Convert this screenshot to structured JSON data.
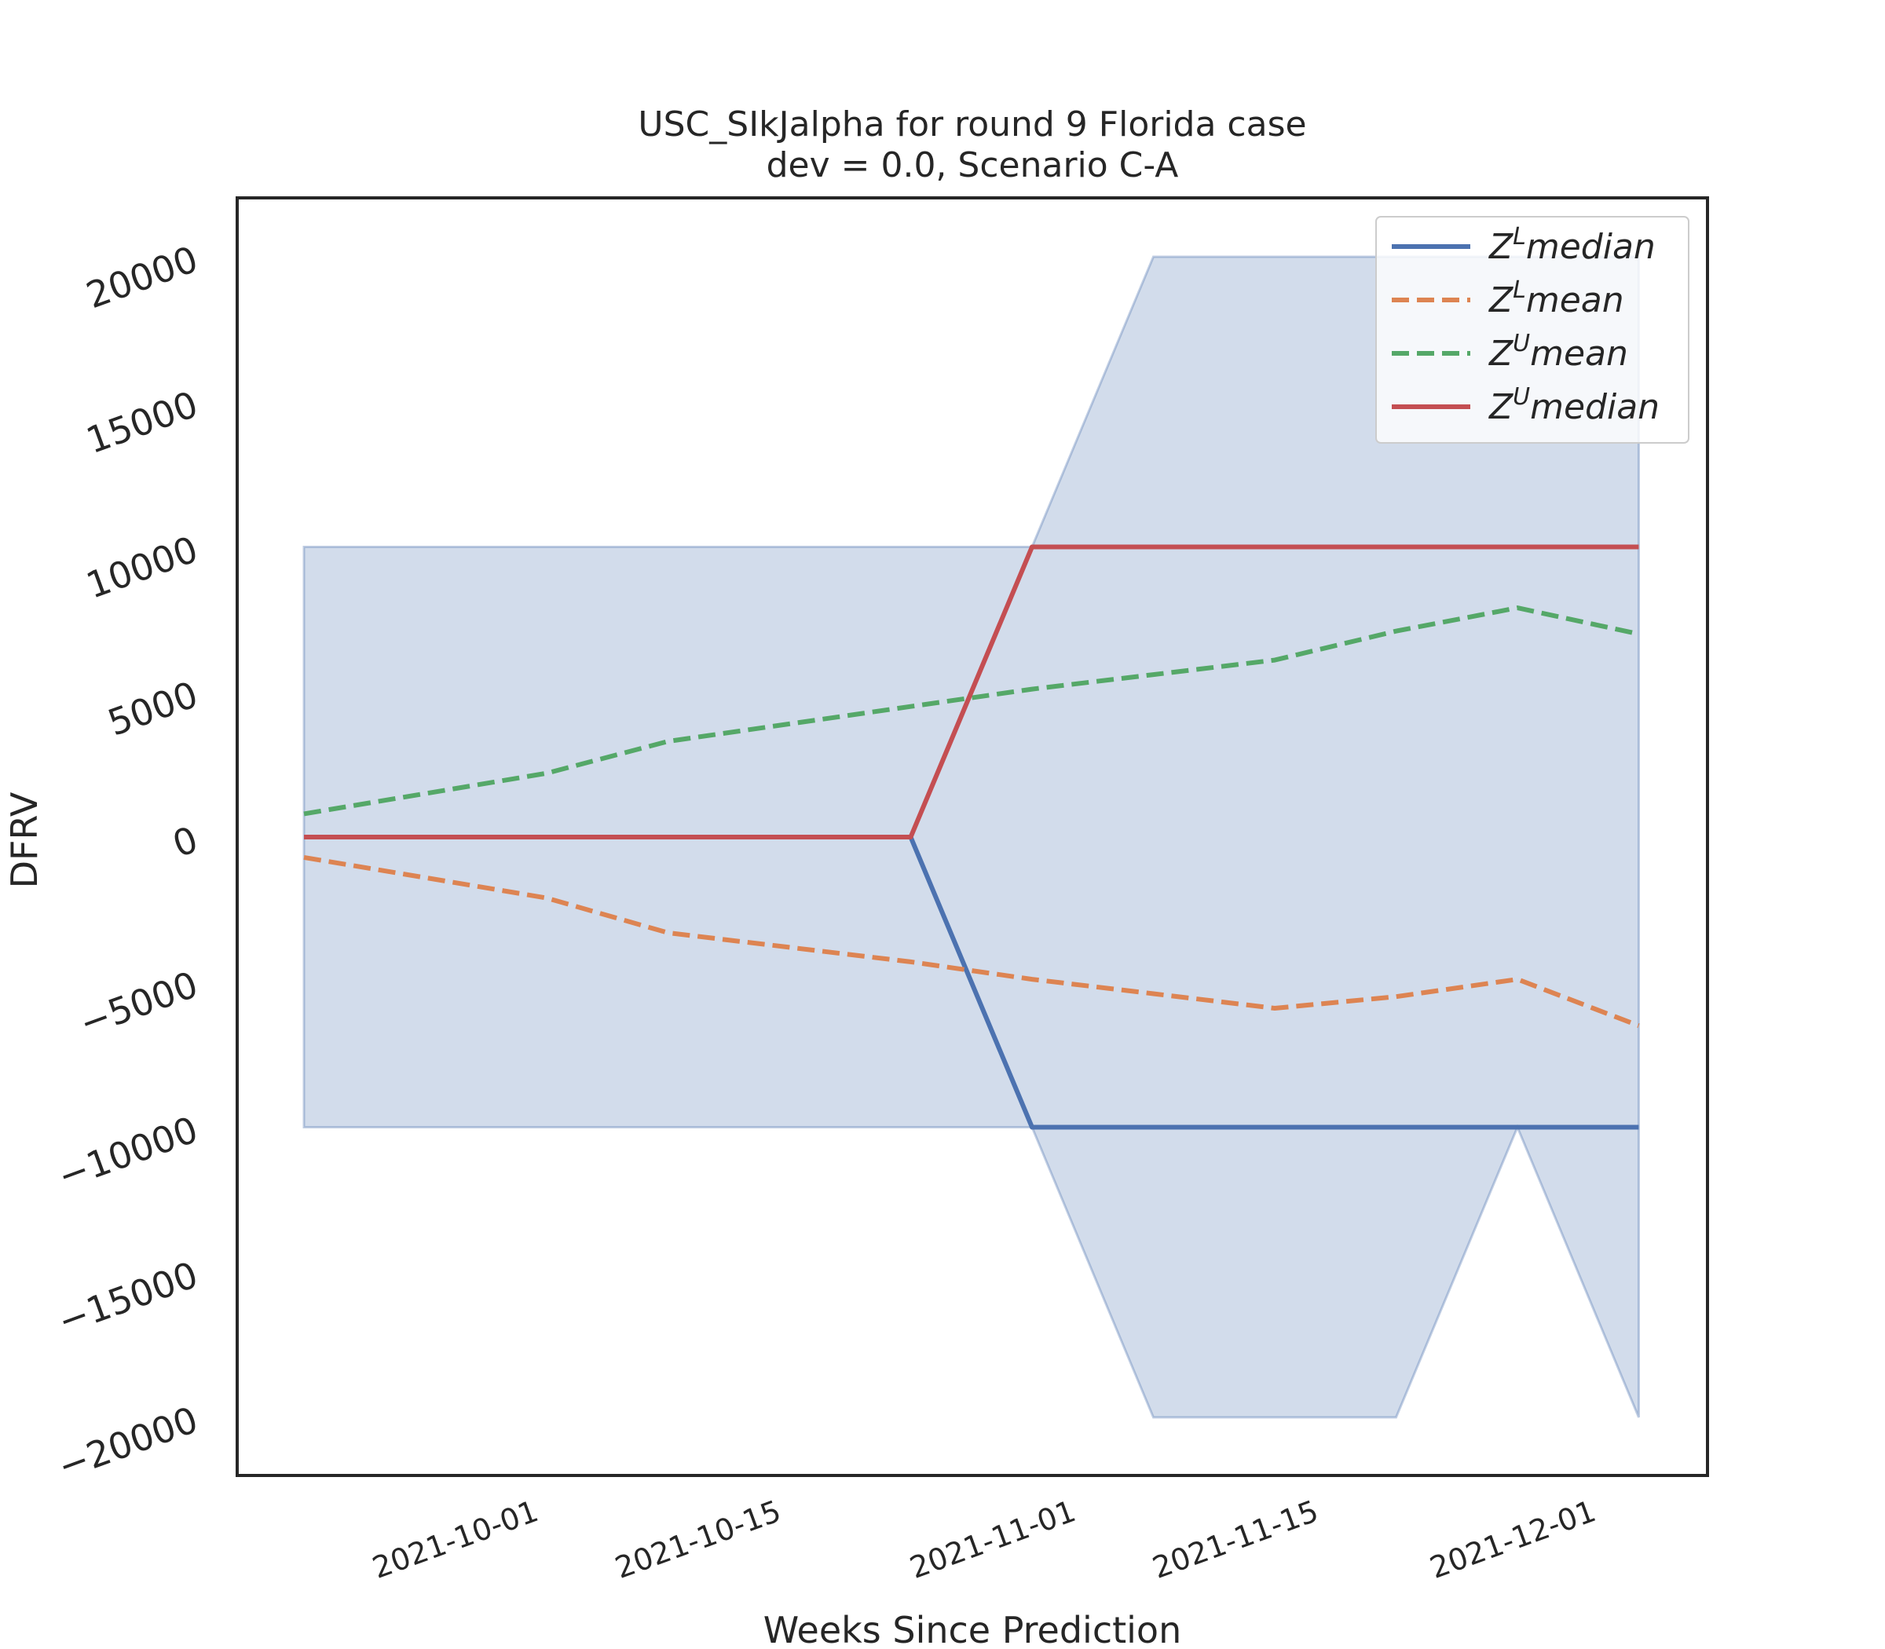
{
  "chart_data": {
    "type": "line",
    "title": "USC_SIkJalpha for round 9 Florida case",
    "subtitle": "dev = 0.0, Scenario C-A",
    "xlabel": "Weeks Since Prediction",
    "ylabel": "DFRV",
    "x": [
      "2021-09-18",
      "2021-09-25",
      "2021-10-02",
      "2021-10-09",
      "2021-10-16",
      "2021-10-23",
      "2021-10-30",
      "2021-11-06",
      "2021-11-13",
      "2021-11-20",
      "2021-11-27",
      "2021-12-04"
    ],
    "x_ticks": [
      "2021-10-01",
      "2021-10-15",
      "2021-11-01",
      "2021-11-15",
      "2021-12-01"
    ],
    "y_ticks": [
      20000,
      15000,
      10000,
      5000,
      0,
      -5000,
      -10000,
      -15000,
      -20000
    ],
    "y_tick_labels": [
      "20000",
      "15000",
      "10000",
      "5000",
      "0",
      "−5000",
      "−10000",
      "−15000",
      "−20000"
    ],
    "ylim": [
      -21000,
      22000
    ],
    "grid": false,
    "legend_position": "top-right",
    "band": {
      "upper": [
        10000,
        10000,
        10000,
        10000,
        10000,
        10000,
        10000,
        20000,
        20000,
        20000,
        20000,
        20000
      ],
      "lower": [
        -10000,
        -10000,
        -10000,
        -10000,
        -10000,
        -10000,
        -10000,
        -20000,
        -20000,
        -20000,
        -10000,
        -20000
      ],
      "color": "#4c72b0"
    },
    "series": [
      {
        "name": "Z",
        "sup": "L",
        "suffix": "median",
        "style": "solid",
        "color": "#4c72b0",
        "values": [
          0,
          0,
          0,
          0,
          0,
          0,
          -10000,
          -10000,
          -10000,
          -10000,
          -10000,
          -10000
        ]
      },
      {
        "name": "Z",
        "sup": "L",
        "suffix": "mean",
        "style": "dashed",
        "color": "#dd8452",
        "values": [
          -700,
          -1400,
          -2100,
          -3300,
          -3800,
          -4300,
          -4900,
          -5400,
          -5900,
          -5500,
          -4900,
          -6500
        ]
      },
      {
        "name": "Z",
        "sup": "U",
        "suffix": "mean",
        "style": "dashed",
        "color": "#55a868",
        "values": [
          800,
          1500,
          2200,
          3300,
          3900,
          4500,
          5100,
          5600,
          6100,
          7100,
          7900,
          7000
        ]
      },
      {
        "name": "Z",
        "sup": "U",
        "suffix": "median",
        "style": "solid",
        "color": "#c44e52",
        "values": [
          0,
          0,
          0,
          0,
          0,
          0,
          10000,
          10000,
          10000,
          10000,
          10000,
          10000
        ]
      }
    ]
  }
}
